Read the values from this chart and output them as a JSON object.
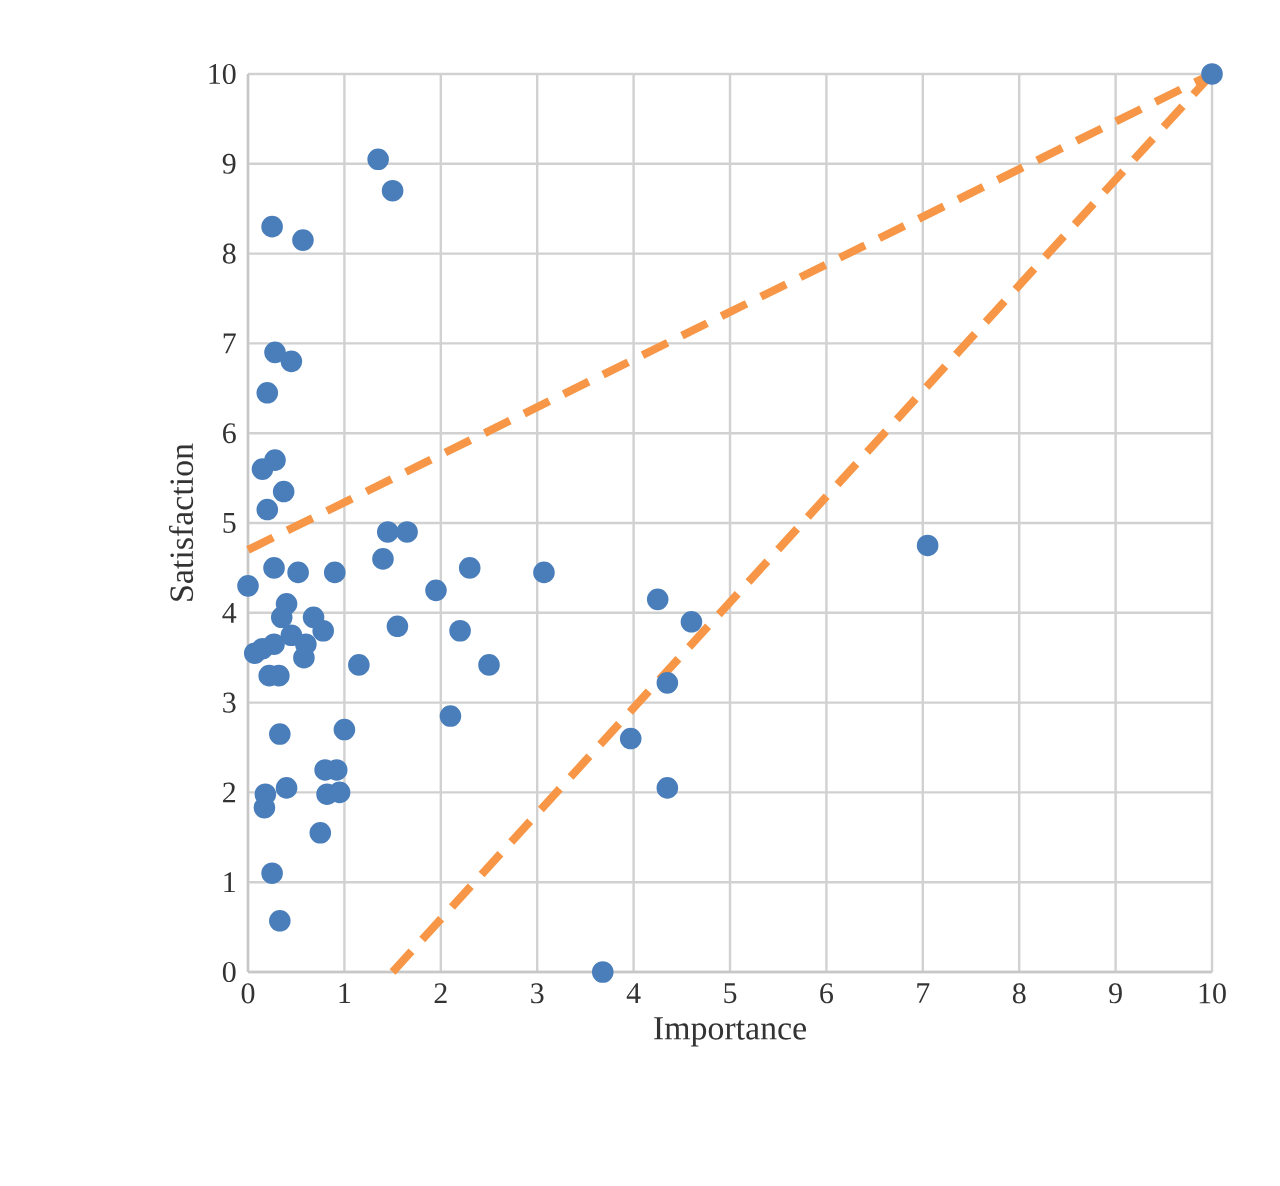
{
  "chart_data": {
    "type": "scatter",
    "xlabel": "Importance",
    "ylabel": "Satisfaction",
    "xlim": [
      0,
      10
    ],
    "ylim": [
      0,
      10
    ],
    "xticks": [
      0,
      1,
      2,
      3,
      4,
      5,
      6,
      7,
      8,
      9,
      10
    ],
    "yticks": [
      0,
      1,
      2,
      3,
      4,
      5,
      6,
      7,
      8,
      9,
      10
    ],
    "grid": true,
    "series": [
      {
        "color": "#4a7ebb",
        "marker": "circle",
        "x": [
          1.35,
          1.5,
          0.25,
          0.57,
          0.28,
          0.45,
          0.2,
          0.28,
          0.15,
          0.37,
          0.2,
          1.45,
          1.65,
          1.4,
          3.07,
          2.3,
          0.9,
          1.95,
          4.25,
          0.52,
          0.27,
          0.0,
          0.3,
          0.4,
          0.35,
          4.6,
          1.55,
          2.2,
          0.68,
          0.78,
          0.6,
          0.45,
          0.27,
          0.15,
          0.07,
          0.58,
          1.15,
          2.5,
          0.32,
          0.22,
          4.35,
          2.1,
          1.0,
          0.33,
          3.97,
          0.8,
          0.92,
          4.35,
          0.4,
          0.18,
          0.95,
          0.82,
          0.17,
          0.75,
          0.25,
          0.33,
          3.68,
          7.05,
          10
        ],
        "values": [
          9.05,
          8.7,
          8.3,
          8.15,
          6.9,
          6.8,
          6.45,
          5.7,
          5.6,
          5.35,
          5.15,
          4.9,
          4.9,
          4.6,
          4.45,
          4.5,
          4.45,
          4.25,
          4.15,
          4.45,
          4.5,
          4.3,
          null,
          4.1,
          3.95,
          3.9,
          3.85,
          3.8,
          3.95,
          3.8,
          3.65,
          3.75,
          3.65,
          3.6,
          3.55,
          3.5,
          3.42,
          3.42,
          3.3,
          3.3,
          3.22,
          2.85,
          2.7,
          2.65,
          2.6,
          2.25,
          2.25,
          2.05,
          2.05,
          1.98,
          2.0,
          1.98,
          1.83,
          1.55,
          1.1,
          0.57,
          0.0,
          4.75,
          10
        ]
      },
      {
        "type": "line",
        "color": "#f79646",
        "marker": "none",
        "line_style": "dashed",
        "x": [
          0,
          10
        ],
        "values": [
          4.7,
          10
        ]
      },
      {
        "type": "line",
        "color": "#f79646",
        "marker": "none",
        "line_style": "dashed",
        "x": [
          1.5,
          10
        ],
        "values": [
          0,
          10
        ]
      }
    ]
  }
}
